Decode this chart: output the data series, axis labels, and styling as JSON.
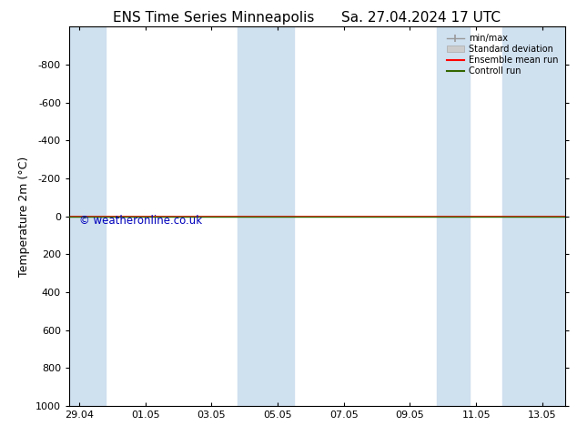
{
  "title_left": "ENS Time Series Minneapolis",
  "title_right": "Sa. 27.04.2024 17 UTC",
  "ylabel": "Temperature 2m (°C)",
  "ylim_bottom": 1000,
  "ylim_top": -1000,
  "yticks": [
    -800,
    -600,
    -400,
    -200,
    0,
    200,
    400,
    600,
    800,
    1000
  ],
  "xtick_labels": [
    "29.04",
    "01.05",
    "03.05",
    "05.05",
    "07.05",
    "09.05",
    "11.05",
    "13.05"
  ],
  "xtick_positions": [
    0,
    2,
    4,
    6,
    8,
    10,
    12,
    14
  ],
  "xlim": [
    -0.3,
    14.7
  ],
  "blue_band_positions": [
    [
      -0.3,
      0.7
    ],
    [
      4.7,
      5.3
    ],
    [
      5.3,
      6.3
    ],
    [
      10.7,
      11.7
    ],
    [
      11.7,
      14.7
    ]
  ],
  "blue_band_color": "#cfe0ef",
  "control_run_y": 0,
  "control_run_color": "#336600",
  "ensemble_mean_color": "#ff0000",
  "watermark": "© weatheronline.co.uk",
  "watermark_color": "#0000bb",
  "legend_items": [
    "min/max",
    "Standard deviation",
    "Ensemble mean run",
    "Controll run"
  ],
  "background_color": "#ffffff",
  "plot_bg_color": "#ffffff",
  "title_fontsize": 11,
  "axis_label_fontsize": 9,
  "tick_fontsize": 8
}
